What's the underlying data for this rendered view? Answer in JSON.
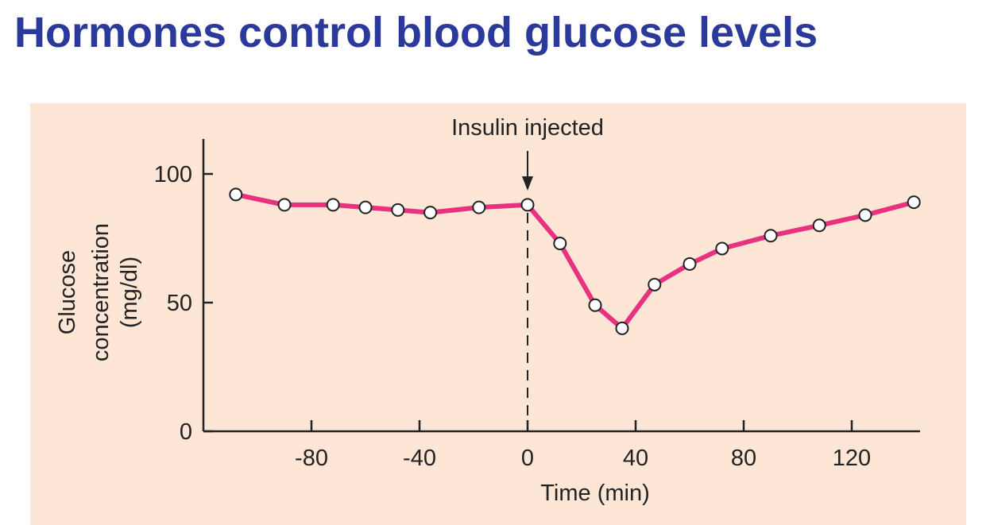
{
  "slide": {
    "title": "Hormones control blood glucose levels"
  },
  "chart_data": {
    "type": "line",
    "title": "",
    "xlabel": "Time (min)",
    "ylabel_lines": [
      "Glucose",
      "concentration",
      "(mg/dl)"
    ],
    "xlim": [
      -120,
      145
    ],
    "ylim": [
      0,
      115
    ],
    "xticks": [
      -80,
      -40,
      0,
      40,
      80,
      120
    ],
    "yticks": [
      0,
      50,
      100
    ],
    "grid": false,
    "annotation": {
      "text": "Insulin injected",
      "x": 0
    },
    "series": [
      {
        "x": [
          -108,
          -90,
          -72,
          -60,
          -48,
          -36,
          -18,
          0,
          12,
          25,
          35,
          47,
          60,
          72,
          90,
          108,
          125,
          143
        ],
        "y": [
          92,
          88,
          88,
          87,
          86,
          85,
          87,
          88,
          73,
          49,
          40,
          57,
          65,
          71,
          76,
          80,
          84,
          89
        ]
      }
    ],
    "colors": {
      "line": "#e8317f",
      "marker_fill": "#ffffff",
      "marker_stroke": "#222222",
      "axis": "#222222"
    }
  }
}
